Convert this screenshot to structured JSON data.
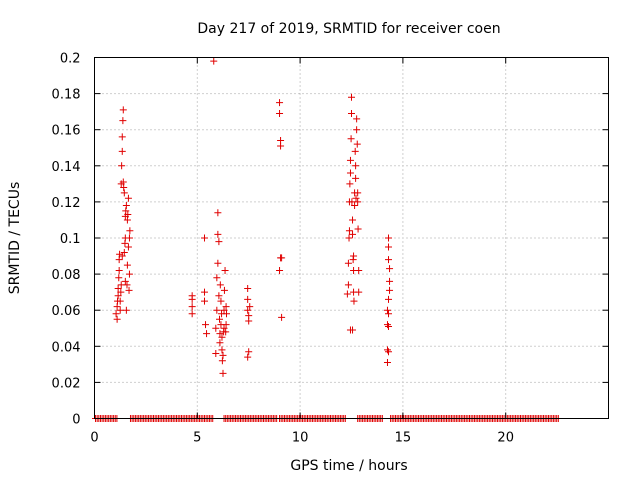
{
  "chart_data": {
    "type": "scatter",
    "title": "Day 217 of 2019, SRMTID for receiver coen",
    "xlabel": "GPS time / hours",
    "ylabel": "SRMTID / TECUs",
    "xlim": [
      0,
      25
    ],
    "ylim": [
      0,
      0.2
    ],
    "x_ticks": [
      0,
      5,
      10,
      15,
      20
    ],
    "x_tick_labels": [
      "0",
      "5",
      "10",
      "15",
      "20"
    ],
    "y_ticks": [
      0,
      0.02,
      0.04,
      0.06,
      0.08,
      0.1,
      0.12,
      0.14,
      0.16,
      0.18,
      0.2
    ],
    "y_tick_labels": [
      "0",
      "0.02",
      "0.04",
      "0.06",
      "0.08",
      "0.1",
      "0.12",
      "0.14",
      "0.16",
      "0.18",
      "0.2"
    ],
    "grid": true,
    "marker": "+",
    "color": "#e00000",
    "zero_line_segments": [
      [
        0.05,
        1.15
      ],
      [
        1.75,
        5.8
      ],
      [
        6.3,
        7.45
      ],
      [
        7.5,
        8.9
      ],
      [
        9.0,
        12.25
      ],
      [
        12.8,
        14.0
      ],
      [
        14.4,
        22.6
      ]
    ],
    "series": [
      {
        "name": "SRMTID",
        "points": [
          [
            1.05,
            0.058
          ],
          [
            1.1,
            0.055
          ],
          [
            1.1,
            0.062
          ],
          [
            1.12,
            0.065
          ],
          [
            1.15,
            0.068
          ],
          [
            1.15,
            0.072
          ],
          [
            1.18,
            0.078
          ],
          [
            1.2,
            0.082
          ],
          [
            1.2,
            0.088
          ],
          [
            1.22,
            0.091
          ],
          [
            1.25,
            0.06
          ],
          [
            1.25,
            0.065
          ],
          [
            1.28,
            0.07
          ],
          [
            1.3,
            0.074
          ],
          [
            1.3,
            0.13
          ],
          [
            1.32,
            0.14
          ],
          [
            1.35,
            0.148
          ],
          [
            1.35,
            0.156
          ],
          [
            1.38,
            0.165
          ],
          [
            1.4,
            0.171
          ],
          [
            1.4,
            0.131
          ],
          [
            1.42,
            0.128
          ],
          [
            1.45,
            0.125
          ],
          [
            1.45,
            0.092
          ],
          [
            1.48,
            0.097
          ],
          [
            1.5,
            0.1
          ],
          [
            1.5,
            0.112
          ],
          [
            1.52,
            0.115
          ],
          [
            1.55,
            0.118
          ],
          [
            1.55,
            0.06
          ],
          [
            1.58,
            0.074
          ],
          [
            1.6,
            0.085
          ],
          [
            1.6,
            0.11
          ],
          [
            1.62,
            0.113
          ],
          [
            1.65,
            0.122
          ],
          [
            1.65,
            0.095
          ],
          [
            1.68,
            0.071
          ],
          [
            1.7,
            0.08
          ],
          [
            1.7,
            0.1
          ],
          [
            1.72,
            0.104
          ],
          [
            1.5,
            0.076
          ],
          [
            1.35,
            0.09
          ],
          [
            4.75,
            0.068
          ],
          [
            4.75,
            0.066
          ],
          [
            4.75,
            0.062
          ],
          [
            4.75,
            0.058
          ],
          [
            5.35,
            0.1
          ],
          [
            5.35,
            0.07
          ],
          [
            5.35,
            0.065
          ],
          [
            5.4,
            0.052
          ],
          [
            5.45,
            0.047
          ],
          [
            5.8,
            0.198
          ],
          [
            5.9,
            0.036
          ],
          [
            5.9,
            0.05
          ],
          [
            5.95,
            0.06
          ],
          [
            5.95,
            0.078
          ],
          [
            6.0,
            0.086
          ],
          [
            6.0,
            0.102
          ],
          [
            6.0,
            0.114
          ],
          [
            6.05,
            0.098
          ],
          [
            6.05,
            0.068
          ],
          [
            6.08,
            0.055
          ],
          [
            6.1,
            0.047
          ],
          [
            6.1,
            0.042
          ],
          [
            6.12,
            0.074
          ],
          [
            6.15,
            0.065
          ],
          [
            6.15,
            0.052
          ],
          [
            6.18,
            0.058
          ],
          [
            6.2,
            0.045
          ],
          [
            6.2,
            0.038
          ],
          [
            6.22,
            0.032
          ],
          [
            6.25,
            0.025
          ],
          [
            6.25,
            0.035
          ],
          [
            6.28,
            0.048
          ],
          [
            6.3,
            0.05
          ],
          [
            6.3,
            0.06
          ],
          [
            6.32,
            0.071
          ],
          [
            6.35,
            0.082
          ],
          [
            6.38,
            0.048
          ],
          [
            6.4,
            0.052
          ],
          [
            6.4,
            0.062
          ],
          [
            6.42,
            0.058
          ],
          [
            7.45,
            0.072
          ],
          [
            7.45,
            0.066
          ],
          [
            7.45,
            0.06
          ],
          [
            7.5,
            0.057
          ],
          [
            7.5,
            0.054
          ],
          [
            7.5,
            0.037
          ],
          [
            7.45,
            0.034
          ],
          [
            7.55,
            0.062
          ],
          [
            9.0,
            0.175
          ],
          [
            9.0,
            0.169
          ],
          [
            9.05,
            0.154
          ],
          [
            9.05,
            0.151
          ],
          [
            9.05,
            0.089
          ],
          [
            9.0,
            0.082
          ],
          [
            9.1,
            0.089
          ],
          [
            9.1,
            0.056
          ],
          [
            12.3,
            0.069
          ],
          [
            12.35,
            0.074
          ],
          [
            12.35,
            0.086
          ],
          [
            12.38,
            0.1
          ],
          [
            12.4,
            0.104
          ],
          [
            12.4,
            0.12
          ],
          [
            12.42,
            0.13
          ],
          [
            12.45,
            0.136
          ],
          [
            12.45,
            0.143
          ],
          [
            12.48,
            0.155
          ],
          [
            12.5,
            0.178
          ],
          [
            12.5,
            0.169
          ],
          [
            12.52,
            0.12
          ],
          [
            12.55,
            0.11
          ],
          [
            12.55,
            0.102
          ],
          [
            12.58,
            0.088
          ],
          [
            12.6,
            0.082
          ],
          [
            12.6,
            0.07
          ],
          [
            12.62,
            0.065
          ],
          [
            12.65,
            0.125
          ],
          [
            12.65,
            0.118
          ],
          [
            12.68,
            0.148
          ],
          [
            12.7,
            0.14
          ],
          [
            12.7,
            0.133
          ],
          [
            12.72,
            0.122
          ],
          [
            12.75,
            0.16
          ],
          [
            12.75,
            0.166
          ],
          [
            12.78,
            0.152
          ],
          [
            12.8,
            0.125
          ],
          [
            12.8,
            0.12
          ],
          [
            12.82,
            0.105
          ],
          [
            12.85,
            0.082
          ],
          [
            12.85,
            0.07
          ],
          [
            12.45,
            0.049
          ],
          [
            12.55,
            0.049
          ],
          [
            12.6,
            0.09
          ],
          [
            14.3,
            0.1
          ],
          [
            14.3,
            0.095
          ],
          [
            14.3,
            0.088
          ],
          [
            14.35,
            0.083
          ],
          [
            14.35,
            0.076
          ],
          [
            14.35,
            0.071
          ],
          [
            14.3,
            0.066
          ],
          [
            14.25,
            0.06
          ],
          [
            14.3,
            0.058
          ],
          [
            14.25,
            0.052
          ],
          [
            14.3,
            0.051
          ],
          [
            14.25,
            0.038
          ],
          [
            14.3,
            0.037
          ],
          [
            14.25,
            0.031
          ]
        ]
      }
    ]
  }
}
